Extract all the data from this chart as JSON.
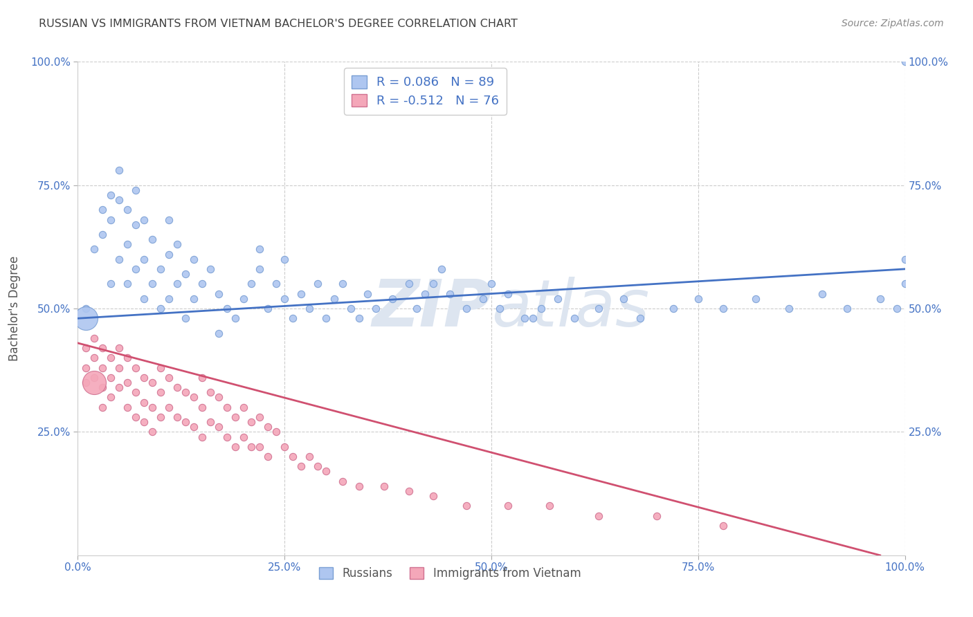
{
  "title": "RUSSIAN VS IMMIGRANTS FROM VIETNAM BACHELOR'S DEGREE CORRELATION CHART",
  "source_text": "Source: ZipAtlas.com",
  "ylabel": "Bachelor's Degree",
  "xlim": [
    0,
    100
  ],
  "ylim": [
    0,
    100
  ],
  "legend_entries": [
    {
      "label": "Russians",
      "color": "#aec6f0"
    },
    {
      "label": "Immigrants from Vietnam",
      "color": "#f4a7b9"
    }
  ],
  "r_russian": 0.086,
  "n_russian": 89,
  "r_vietnam": -0.512,
  "n_vietnam": 76,
  "trend_russian_color": "#4472c4",
  "trend_vietnam_color": "#d05070",
  "scatter_russian_color": "#aec6f0",
  "scatter_vietnam_color": "#f4a7b9",
  "scatter_russian_edge": "#7a9fd4",
  "scatter_vietnam_edge": "#d07090",
  "background_color": "#ffffff",
  "grid_color": "#cccccc",
  "title_color": "#404040",
  "axis_label_color": "#555555",
  "tick_label_color": "#4472c4",
  "watermark_color": "#dde5f0",
  "legend_text_color": "#4472c4",
  "trend_russian_start_y": 48,
  "trend_russian_end_y": 58,
  "trend_vietnam_start_y": 43,
  "trend_vietnam_end_y": 0,
  "trend_vietnam_end_x": 97,
  "rus_x": [
    1,
    2,
    3,
    3,
    4,
    4,
    4,
    5,
    5,
    5,
    6,
    6,
    6,
    7,
    7,
    7,
    8,
    8,
    8,
    9,
    9,
    10,
    10,
    11,
    11,
    11,
    12,
    12,
    13,
    13,
    14,
    14,
    15,
    16,
    17,
    17,
    18,
    19,
    20,
    21,
    22,
    22,
    23,
    24,
    25,
    25,
    26,
    27,
    28,
    29,
    30,
    31,
    32,
    33,
    34,
    35,
    36,
    38,
    40,
    41,
    42,
    43,
    44,
    45,
    47,
    49,
    50,
    51,
    52,
    54,
    56,
    58,
    60,
    63,
    66,
    68,
    72,
    75,
    78,
    82,
    86,
    90,
    93,
    97,
    99,
    100,
    100,
    100,
    55
  ],
  "rus_y": [
    50,
    62,
    65,
    70,
    55,
    68,
    73,
    60,
    72,
    78,
    55,
    63,
    70,
    58,
    67,
    74,
    52,
    60,
    68,
    55,
    64,
    50,
    58,
    52,
    61,
    68,
    55,
    63,
    48,
    57,
    52,
    60,
    55,
    58,
    45,
    53,
    50,
    48,
    52,
    55,
    58,
    62,
    50,
    55,
    52,
    60,
    48,
    53,
    50,
    55,
    48,
    52,
    55,
    50,
    48,
    53,
    50,
    52,
    55,
    50,
    53,
    55,
    58,
    53,
    50,
    52,
    55,
    50,
    53,
    48,
    50,
    52,
    48,
    50,
    52,
    48,
    50,
    52,
    50,
    52,
    50,
    53,
    50,
    52,
    50,
    55,
    60,
    100,
    48
  ],
  "viet_x": [
    1,
    1,
    1,
    2,
    2,
    2,
    3,
    3,
    3,
    3,
    4,
    4,
    4,
    5,
    5,
    5,
    6,
    6,
    6,
    7,
    7,
    7,
    8,
    8,
    8,
    9,
    9,
    9,
    10,
    10,
    10,
    11,
    11,
    12,
    12,
    13,
    13,
    14,
    14,
    15,
    15,
    15,
    16,
    16,
    17,
    17,
    18,
    18,
    19,
    19,
    20,
    20,
    21,
    21,
    22,
    22,
    23,
    23,
    24,
    25,
    26,
    27,
    28,
    29,
    30,
    32,
    34,
    37,
    40,
    43,
    47,
    52,
    57,
    63,
    70,
    78
  ],
  "viet_y": [
    42,
    38,
    35,
    44,
    40,
    36,
    42,
    38,
    34,
    30,
    40,
    36,
    32,
    42,
    38,
    34,
    40,
    35,
    30,
    38,
    33,
    28,
    36,
    31,
    27,
    35,
    30,
    25,
    38,
    33,
    28,
    36,
    30,
    34,
    28,
    33,
    27,
    32,
    26,
    36,
    30,
    24,
    33,
    27,
    32,
    26,
    30,
    24,
    28,
    22,
    30,
    24,
    27,
    22,
    28,
    22,
    26,
    20,
    25,
    22,
    20,
    18,
    20,
    18,
    17,
    15,
    14,
    14,
    13,
    12,
    10,
    10,
    10,
    8,
    8,
    6
  ],
  "figsize": [
    14.06,
    8.92
  ],
  "dpi": 100
}
